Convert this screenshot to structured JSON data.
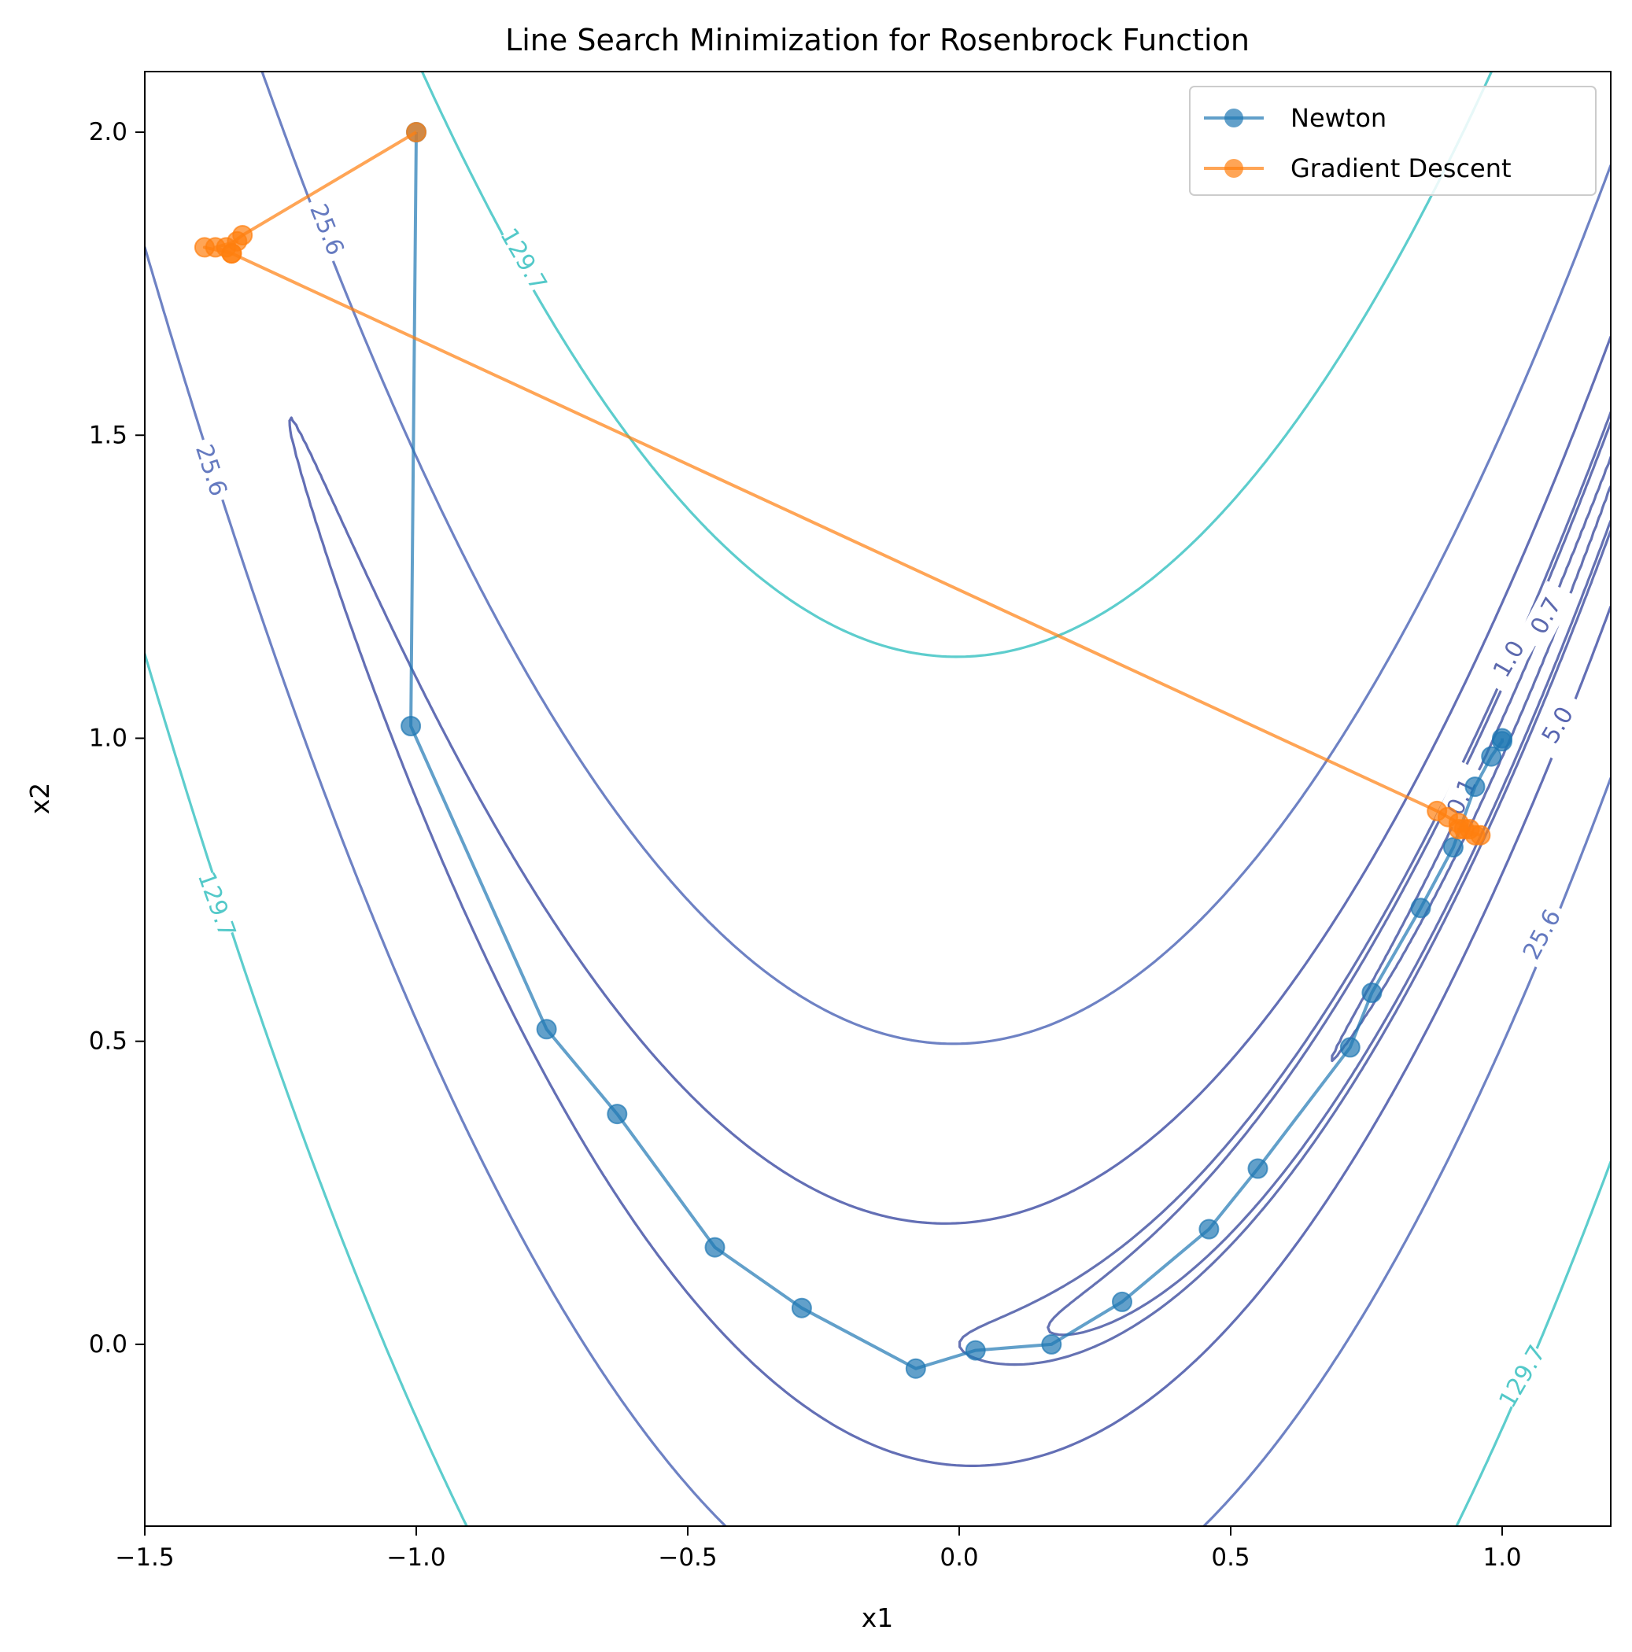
{
  "chart_data": {
    "type": "line",
    "title": "Line Search Minimization for Rosenbrock Function",
    "xlabel": "x1",
    "ylabel": "x2",
    "xlim": [
      -1.5,
      1.2
    ],
    "ylim": [
      -0.3,
      2.1
    ],
    "x_ticks": [
      -1.5,
      -1.0,
      -0.5,
      0.0,
      0.5,
      1.0
    ],
    "x_tick_labels": [
      "−1.5",
      "−1.0",
      "−0.5",
      "0.0",
      "0.5",
      "1.0"
    ],
    "y_ticks": [
      0.0,
      0.5,
      1.0,
      1.5,
      2.0
    ],
    "y_tick_labels": [
      "0.0",
      "0.5",
      "1.0",
      "1.5",
      "2.0"
    ],
    "grid": false,
    "legend_position": "top-right",
    "contour_levels": [
      {
        "value": 0.1,
        "label": "0.1",
        "color": "#3f4fa0"
      },
      {
        "value": 0.7,
        "label": "0.7",
        "color": "#3f4fa0"
      },
      {
        "value": 1.0,
        "label": "1.0",
        "color": "#3f4fa0"
      },
      {
        "value": 5.0,
        "label": "5.0",
        "color": "#3c4ba3"
      },
      {
        "value": 25.6,
        "label": "25.6",
        "color": "#4a63b5"
      },
      {
        "value": 129.7,
        "label": "129.7",
        "color": "#35c0c0"
      }
    ],
    "series": [
      {
        "name": "Newton",
        "color": "#1f77b4",
        "x": [
          -1.0,
          -1.01,
          -0.76,
          -0.63,
          -0.45,
          -0.29,
          -0.08,
          0.03,
          0.17,
          0.3,
          0.46,
          0.55,
          0.72,
          0.76,
          0.85,
          0.91,
          0.95,
          0.98,
          1.0,
          1.0
        ],
        "y": [
          2.0,
          1.02,
          0.52,
          0.38,
          0.16,
          0.06,
          -0.04,
          -0.01,
          0.0,
          0.07,
          0.19,
          0.29,
          0.49,
          0.58,
          0.72,
          0.82,
          0.92,
          0.97,
          0.995,
          1.0
        ]
      },
      {
        "name": "Gradient Descent",
        "color": "#ff7f0e",
        "x": [
          -1.0,
          -1.32,
          -1.35,
          -1.33,
          -1.37,
          -1.34,
          -1.39,
          -1.34,
          0.88,
          0.9,
          0.92,
          0.94,
          0.93,
          0.95,
          0.92,
          0.96
        ],
        "y": [
          2.0,
          1.83,
          1.81,
          1.82,
          1.81,
          1.8,
          1.81,
          1.8,
          0.88,
          0.87,
          0.86,
          0.85,
          0.85,
          0.84,
          0.85,
          0.84
        ]
      }
    ]
  }
}
